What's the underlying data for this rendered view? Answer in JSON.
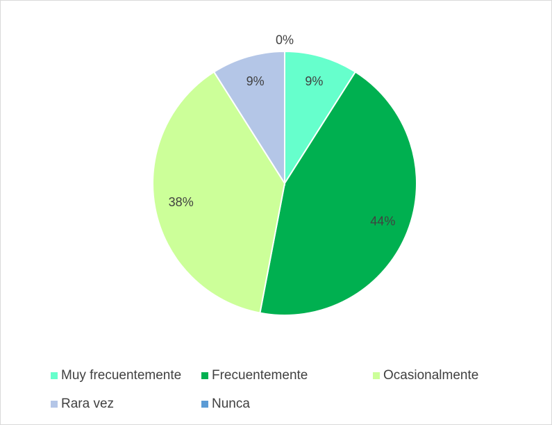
{
  "chart_data": {
    "type": "pie",
    "categories": [
      "Muy frecuentemente",
      "Frecuentemente",
      "Ocasionalmente",
      "Rara vez",
      "Nunca"
    ],
    "values": [
      9,
      44,
      38,
      9,
      0
    ],
    "value_labels": [
      "9%",
      "44%",
      "38%",
      "9%",
      "0%"
    ],
    "colors": [
      "#66ffcc",
      "#00b050",
      "#ccff99",
      "#b4c6e7",
      "#5b9bd5"
    ],
    "legend": "bottom"
  }
}
